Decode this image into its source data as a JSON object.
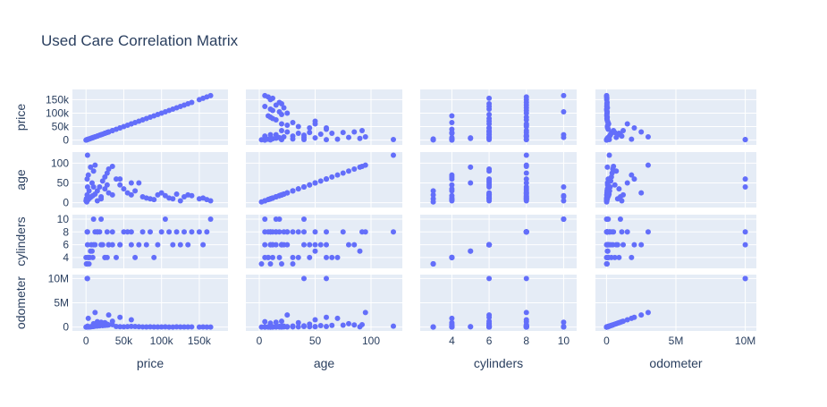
{
  "chart_data": {
    "type": "scatter",
    "title": "Used Care Correlation Matrix",
    "variables": [
      "price",
      "age",
      "cylinders",
      "odometer"
    ],
    "marker_color": "#636efa",
    "panel_background": "#e5ecf6",
    "grid_color": "#ffffff",
    "axes": {
      "price": {
        "range": [
          -18000,
          188000
        ],
        "ticks": [
          0,
          50000,
          100000,
          150000
        ],
        "tick_labels_x": [
          "0",
          "50k",
          "100k",
          "150k"
        ],
        "tick_labels_y": [
          "0",
          "50k",
          "100k",
          "150k"
        ]
      },
      "age": {
        "range": [
          -12,
          128
        ],
        "ticks": [
          0,
          50,
          100
        ],
        "tick_labels_x": [
          "0",
          "50",
          "100"
        ],
        "tick_labels_y": [
          "0",
          "50",
          "100"
        ]
      },
      "cylinders": {
        "range": [
          2.3,
          10.7
        ],
        "ticks": [
          4,
          6,
          8,
          10
        ],
        "tick_labels_x": [
          "4",
          "6",
          "8",
          "10"
        ],
        "tick_labels_y": [
          "4",
          "6",
          "8",
          "10"
        ]
      },
      "odometer": {
        "range": [
          -800000,
          10800000
        ],
        "ticks": [
          0,
          5000000,
          10000000
        ],
        "tick_labels_x": [
          "0",
          "5M",
          "10M"
        ],
        "tick_labels_y": [
          "0",
          "5M",
          "10M"
        ]
      }
    },
    "points": [
      [
        0,
        5,
        4,
        5000
      ],
      [
        3000,
        8,
        4,
        20000
      ],
      [
        5000,
        12,
        4,
        60000
      ],
      [
        7000,
        15,
        6,
        100000
      ],
      [
        9000,
        18,
        4,
        140000
      ],
      [
        12000,
        22,
        6,
        180000
      ],
      [
        15000,
        30,
        8,
        220000
      ],
      [
        18000,
        40,
        8,
        260000
      ],
      [
        22000,
        55,
        6,
        300000
      ],
      [
        25000,
        65,
        4,
        350000
      ],
      [
        28000,
        75,
        8,
        400000
      ],
      [
        30000,
        85,
        6,
        450000
      ],
      [
        35000,
        92,
        8,
        500000
      ],
      [
        40000,
        60,
        4,
        120000
      ],
      [
        45000,
        45,
        6,
        80000
      ],
      [
        50000,
        35,
        8,
        60000
      ],
      [
        55000,
        25,
        8,
        90000
      ],
      [
        60000,
        20,
        6,
        150000
      ],
      [
        65000,
        30,
        4,
        110000
      ],
      [
        70000,
        50,
        6,
        70000
      ],
      [
        75000,
        15,
        8,
        40000
      ],
      [
        80000,
        12,
        6,
        30000
      ],
      [
        85000,
        10,
        8,
        50000
      ],
      [
        90000,
        8,
        4,
        20000
      ],
      [
        95000,
        20,
        6,
        25000
      ],
      [
        100000,
        25,
        8,
        35000
      ],
      [
        105000,
        18,
        10,
        45000
      ],
      [
        110000,
        12,
        8,
        15000
      ],
      [
        115000,
        10,
        6,
        10000
      ],
      [
        120000,
        22,
        8,
        60000
      ],
      [
        125000,
        5,
        6,
        20000
      ],
      [
        130000,
        15,
        8,
        30000
      ],
      [
        135000,
        20,
        6,
        25000
      ],
      [
        140000,
        18,
        8,
        40000
      ],
      [
        150000,
        10,
        8,
        15000
      ],
      [
        155000,
        12,
        6,
        20000
      ],
      [
        160000,
        8,
        8,
        10000
      ],
      [
        165000,
        5,
        10,
        5000
      ],
      [
        2000,
        120,
        8,
        200000
      ],
      [
        1000,
        2,
        3,
        8000
      ],
      [
        500,
        10,
        3,
        15000
      ],
      [
        1500,
        20,
        3,
        25000
      ],
      [
        4000,
        30,
        3,
        40000
      ],
      [
        6000,
        90,
        5,
        60000
      ],
      [
        8000,
        50,
        5,
        90000
      ],
      [
        10000,
        40,
        10,
        120000
      ],
      [
        20000,
        15,
        10,
        1000000
      ],
      [
        30000,
        25,
        6,
        2500000
      ],
      [
        60000,
        50,
        8,
        1500000
      ],
      [
        45000,
        60,
        6,
        2000000
      ],
      [
        35000,
        20,
        6,
        1200000
      ],
      [
        25000,
        35,
        4,
        900000
      ],
      [
        2000,
        40,
        6,
        10000000
      ],
      [
        1500,
        60,
        8,
        10000000
      ],
      [
        10000,
        80,
        6,
        700000
      ],
      [
        12000,
        95,
        8,
        3000000
      ],
      [
        3000,
        70,
        4,
        1800000
      ],
      [
        20000,
        10,
        6,
        800000
      ],
      [
        15000,
        5,
        8,
        1100000
      ],
      [
        28000,
        45,
        4,
        600000
      ]
    ]
  }
}
